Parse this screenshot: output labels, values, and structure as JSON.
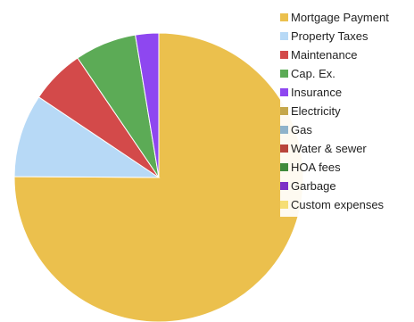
{
  "chart_data": {
    "type": "pie",
    "legend_position": "top-right",
    "slices": [
      {
        "label": "Mortgage Payment",
        "value": 75.1,
        "color": "#EBC04D"
      },
      {
        "label": "Property Taxes",
        "value": 9.3,
        "color": "#B7D9F6"
      },
      {
        "label": "Maintenance",
        "value": 6.1,
        "color": "#D34A4A"
      },
      {
        "label": "Cap. Ex.",
        "value": 6.9,
        "color": "#5CAB56"
      },
      {
        "label": "Insurance",
        "value": 2.6,
        "color": "#8E47F0"
      },
      {
        "label": "Electricity",
        "value": 0,
        "color": "#C5A74B"
      },
      {
        "label": "Gas",
        "value": 0,
        "color": "#8FB3CB"
      },
      {
        "label": "Water & sewer",
        "value": 0,
        "color": "#B9443C"
      },
      {
        "label": "HOA fees",
        "value": 0,
        "color": "#3F8A3C"
      },
      {
        "label": "Garbage",
        "value": 0,
        "color": "#7D30C7"
      },
      {
        "label": "Custom expenses",
        "value": 0,
        "color": "#F6DE75"
      }
    ]
  }
}
